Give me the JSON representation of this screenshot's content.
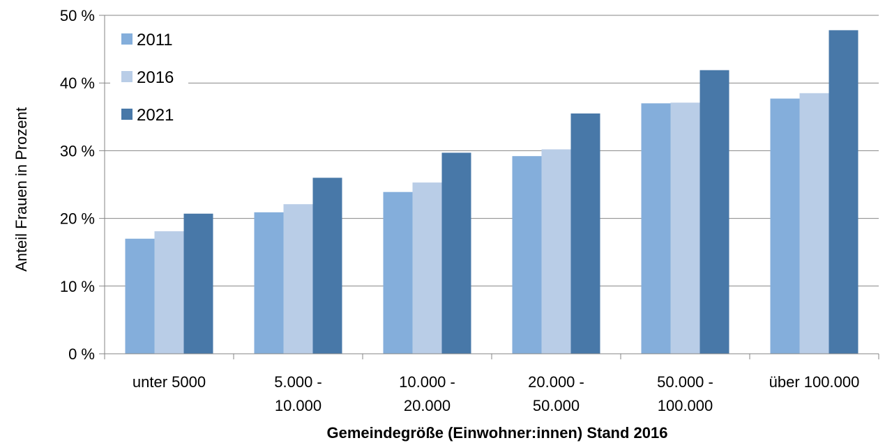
{
  "chart_data": {
    "type": "bar",
    "categories": [
      [
        "unter 5000"
      ],
      [
        "5.000 -",
        "10.000"
      ],
      [
        "10.000 -",
        "20.000"
      ],
      [
        "20.000 -",
        "50.000"
      ],
      [
        "50.000 -",
        "100.000"
      ],
      [
        "über 100.000"
      ]
    ],
    "series": [
      {
        "name": "2011",
        "color": "#84aedb",
        "values": [
          17.0,
          20.9,
          23.9,
          29.2,
          37.0,
          37.7
        ]
      },
      {
        "name": "2016",
        "color": "#b9cde7",
        "values": [
          18.1,
          22.1,
          25.3,
          30.2,
          37.1,
          38.5
        ]
      },
      {
        "name": "2021",
        "color": "#4878a8",
        "values": [
          20.7,
          26.0,
          29.7,
          35.5,
          41.9,
          47.8
        ]
      }
    ],
    "xlabel": "Gemeindegröße (Einwohner:innen) Stand 2016",
    "ylabel": "Anteil Frauen in Prozent",
    "ylim": [
      0,
      50
    ],
    "yticks": [
      0,
      10,
      20,
      30,
      40,
      50
    ],
    "ytick_labels": [
      "0 %",
      "10 %",
      "20 %",
      "30 %",
      "40 %",
      "50 %"
    ],
    "grid": true,
    "legend_position": "top-left"
  }
}
